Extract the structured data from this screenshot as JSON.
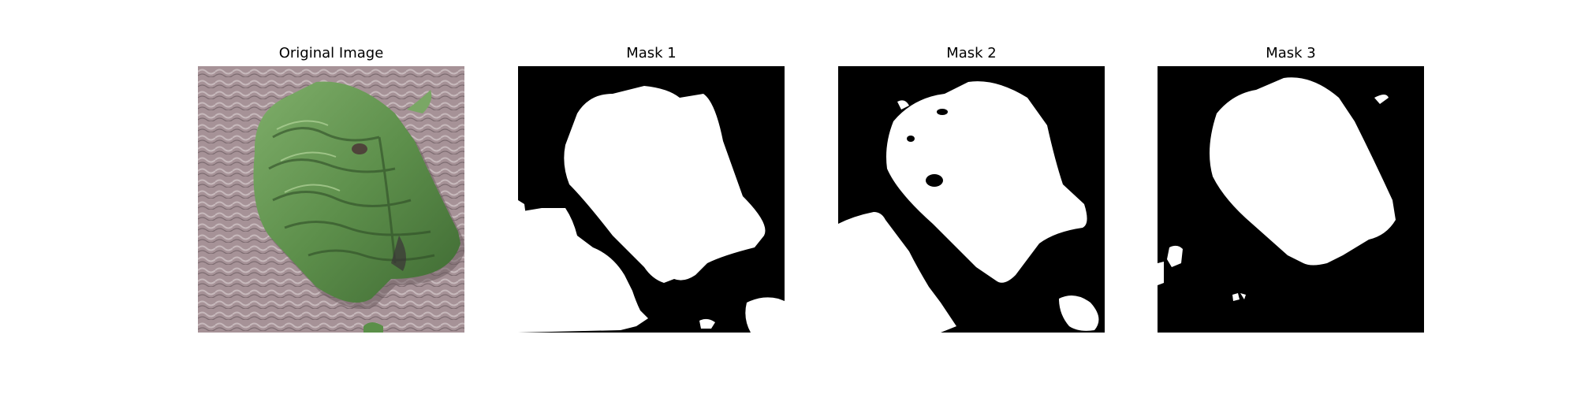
{
  "panels": [
    {
      "title": "Original Image",
      "content": "photo"
    },
    {
      "title": "Mask 1",
      "content": "mask"
    },
    {
      "title": "Mask 2",
      "content": "mask"
    },
    {
      "title": "Mask 3",
      "content": "mask"
    }
  ],
  "colors": {
    "background": "#ffffff",
    "mask_foreground": "#ffffff",
    "mask_background": "#000000",
    "leaf_green": "#5f8f4c",
    "leaf_dark": "#3c5f31",
    "table_texture": "#a69297"
  }
}
